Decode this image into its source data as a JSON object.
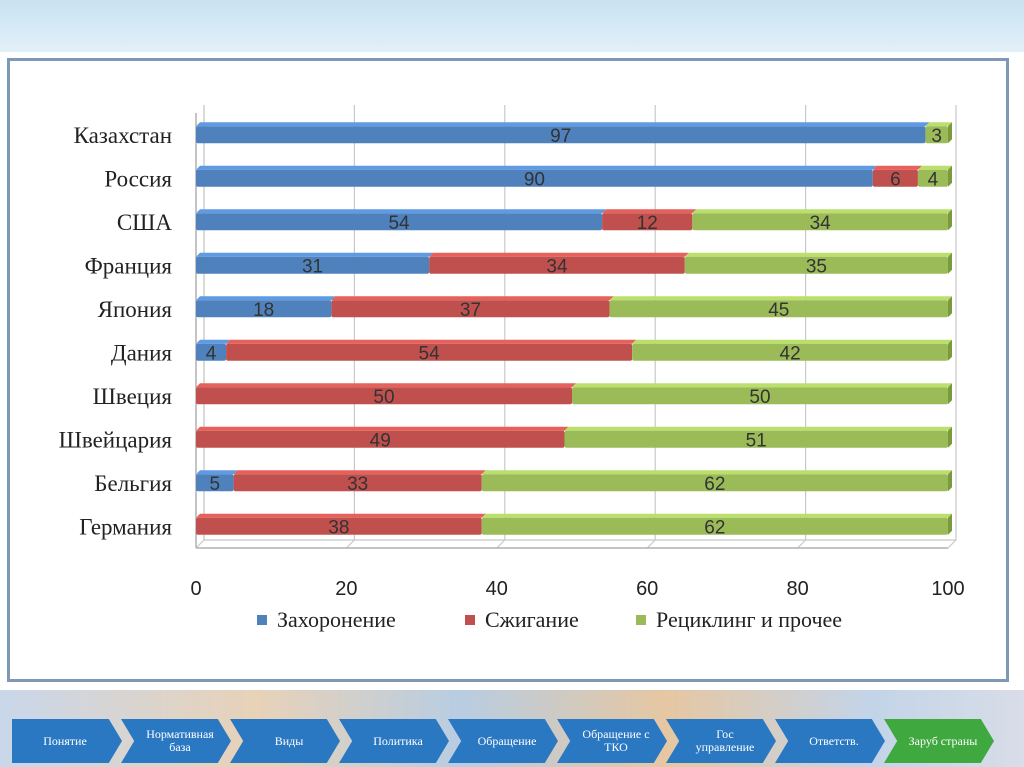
{
  "chart_data": {
    "type": "bar",
    "orientation": "horizontal",
    "stacked": true,
    "categories": [
      "Казахстан",
      "Россия",
      "США",
      "Франция",
      "Япония",
      "Дания",
      "Швеция",
      "Швейцария",
      "Бельгия",
      "Германия"
    ],
    "series": [
      {
        "name": "Захоронение",
        "color": "#4f81bd",
        "values": [
          97,
          90,
          54,
          31,
          18,
          4,
          0,
          0,
          5,
          0
        ]
      },
      {
        "name": "Сжигание",
        "color": "#c0504d",
        "values": [
          0,
          6,
          12,
          34,
          37,
          54,
          50,
          49,
          33,
          38
        ]
      },
      {
        "name": "Рециклинг и прочее",
        "color": "#9bbb59",
        "values": [
          3,
          4,
          34,
          35,
          45,
          42,
          50,
          51,
          62,
          62
        ]
      }
    ],
    "xlim": [
      0,
      100
    ],
    "xticks": [
      "0",
      "20",
      "40",
      "60",
      "80",
      "100"
    ],
    "legend_position": "bottom",
    "grid": true
  },
  "nav": {
    "items": [
      {
        "label": "Понятие",
        "color": "#2b78c2"
      },
      {
        "label": "Нормативная база",
        "color": "#2b78c2"
      },
      {
        "label": "Виды",
        "color": "#2b78c2"
      },
      {
        "label": "Политика",
        "color": "#2b78c2"
      },
      {
        "label": "Обращение",
        "color": "#2b78c2"
      },
      {
        "label": "Обращение с ТКО",
        "color": "#2b78c2"
      },
      {
        "label": "Гос управление",
        "color": "#2b78c2"
      },
      {
        "label": "Ответств.",
        "color": "#2b78c2"
      },
      {
        "label": "Заруб страны",
        "color": "#3fa83f"
      }
    ]
  }
}
